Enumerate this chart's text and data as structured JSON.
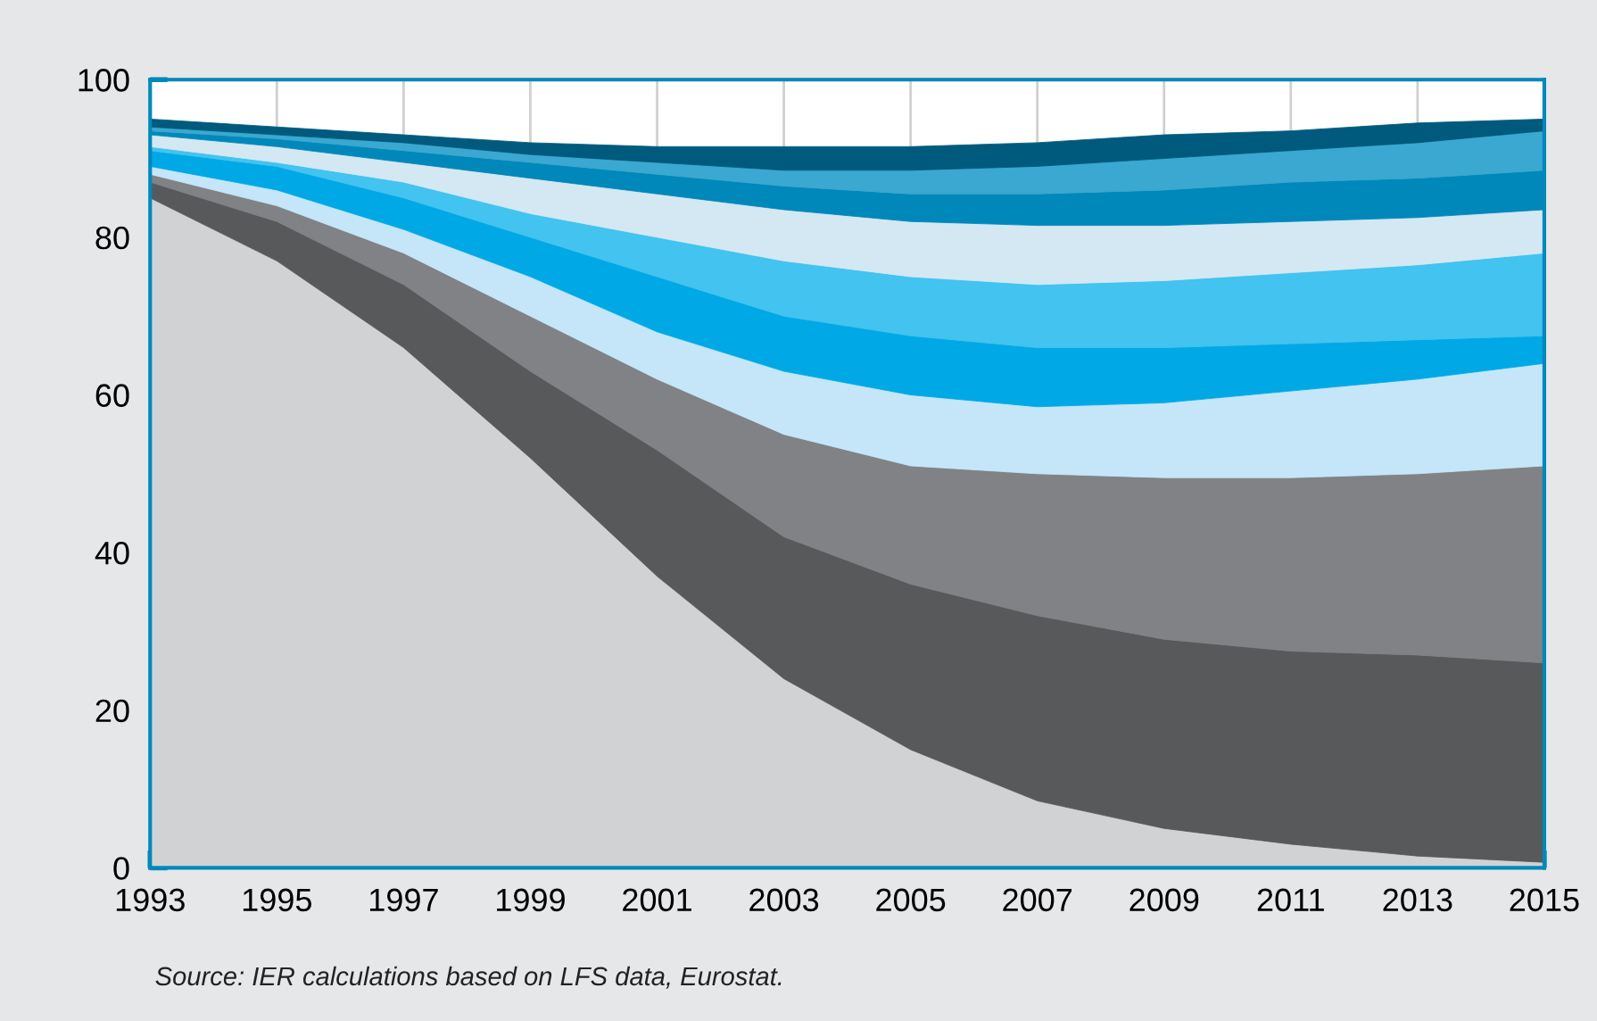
{
  "chart_data": {
    "type": "area",
    "stacked": true,
    "x": [
      1993,
      1995,
      1997,
      1999,
      2001,
      2003,
      2005,
      2007,
      2009,
      2011,
      2013,
      2015
    ],
    "series": [
      {
        "color": "#d1d2d4",
        "values": [
          85,
          77,
          66,
          52,
          37,
          24,
          15,
          8.5,
          5,
          3,
          1.5,
          0.7
        ]
      },
      {
        "color": "#58595b",
        "values": [
          2,
          5,
          8,
          11,
          16,
          18,
          21,
          23.5,
          24,
          24.5,
          25.5,
          25.3
        ]
      },
      {
        "color": "#808285",
        "values": [
          1,
          2,
          4,
          7,
          9,
          13,
          15,
          18,
          20.5,
          22,
          23,
          25
        ]
      },
      {
        "color": "#c4e6f8",
        "values": [
          1,
          2,
          3,
          5,
          6,
          8,
          9,
          8.5,
          9.5,
          11,
          12,
          13
        ]
      },
      {
        "color": "#00a9e6",
        "values": [
          2,
          3,
          4,
          5,
          7,
          7,
          7.5,
          7.5,
          7,
          6,
          5,
          3.5
        ]
      },
      {
        "color": "#42c3f0",
        "values": [
          0.5,
          0.5,
          2,
          3,
          5,
          7,
          7.5,
          8,
          8.5,
          9,
          9.5,
          10.5
        ]
      },
      {
        "color": "#d4e8f4",
        "values": [
          1.5,
          2,
          2.5,
          4.5,
          5.5,
          6.5,
          7,
          7.5,
          7,
          6.5,
          6,
          5.5
        ]
      },
      {
        "color": "#0088bb",
        "values": [
          0.5,
          1,
          1.5,
          2,
          2.5,
          3,
          3.5,
          4,
          4.5,
          5,
          5,
          5
        ]
      },
      {
        "color": "#3aa8d0",
        "values": [
          0.5,
          0.5,
          1,
          1,
          1.5,
          2,
          3,
          3.5,
          4,
          4,
          4.5,
          5
        ]
      },
      {
        "color": "#005a7d",
        "values": [
          1,
          1,
          1,
          1.5,
          2,
          3,
          3,
          3,
          3,
          2.5,
          2.5,
          1.5
        ]
      }
    ],
    "xlim": [
      1993,
      2015
    ],
    "xticks": [
      1993,
      1995,
      1997,
      1999,
      2001,
      2003,
      2005,
      2007,
      2009,
      2011,
      2013,
      2015
    ],
    "ylim": [
      0,
      100
    ],
    "yticks": [
      0,
      20,
      40,
      60,
      80,
      100
    ],
    "grid": "x",
    "legend": false,
    "annotations": [
      "Source: IER calculations based on LFS data, Eurostat."
    ]
  }
}
